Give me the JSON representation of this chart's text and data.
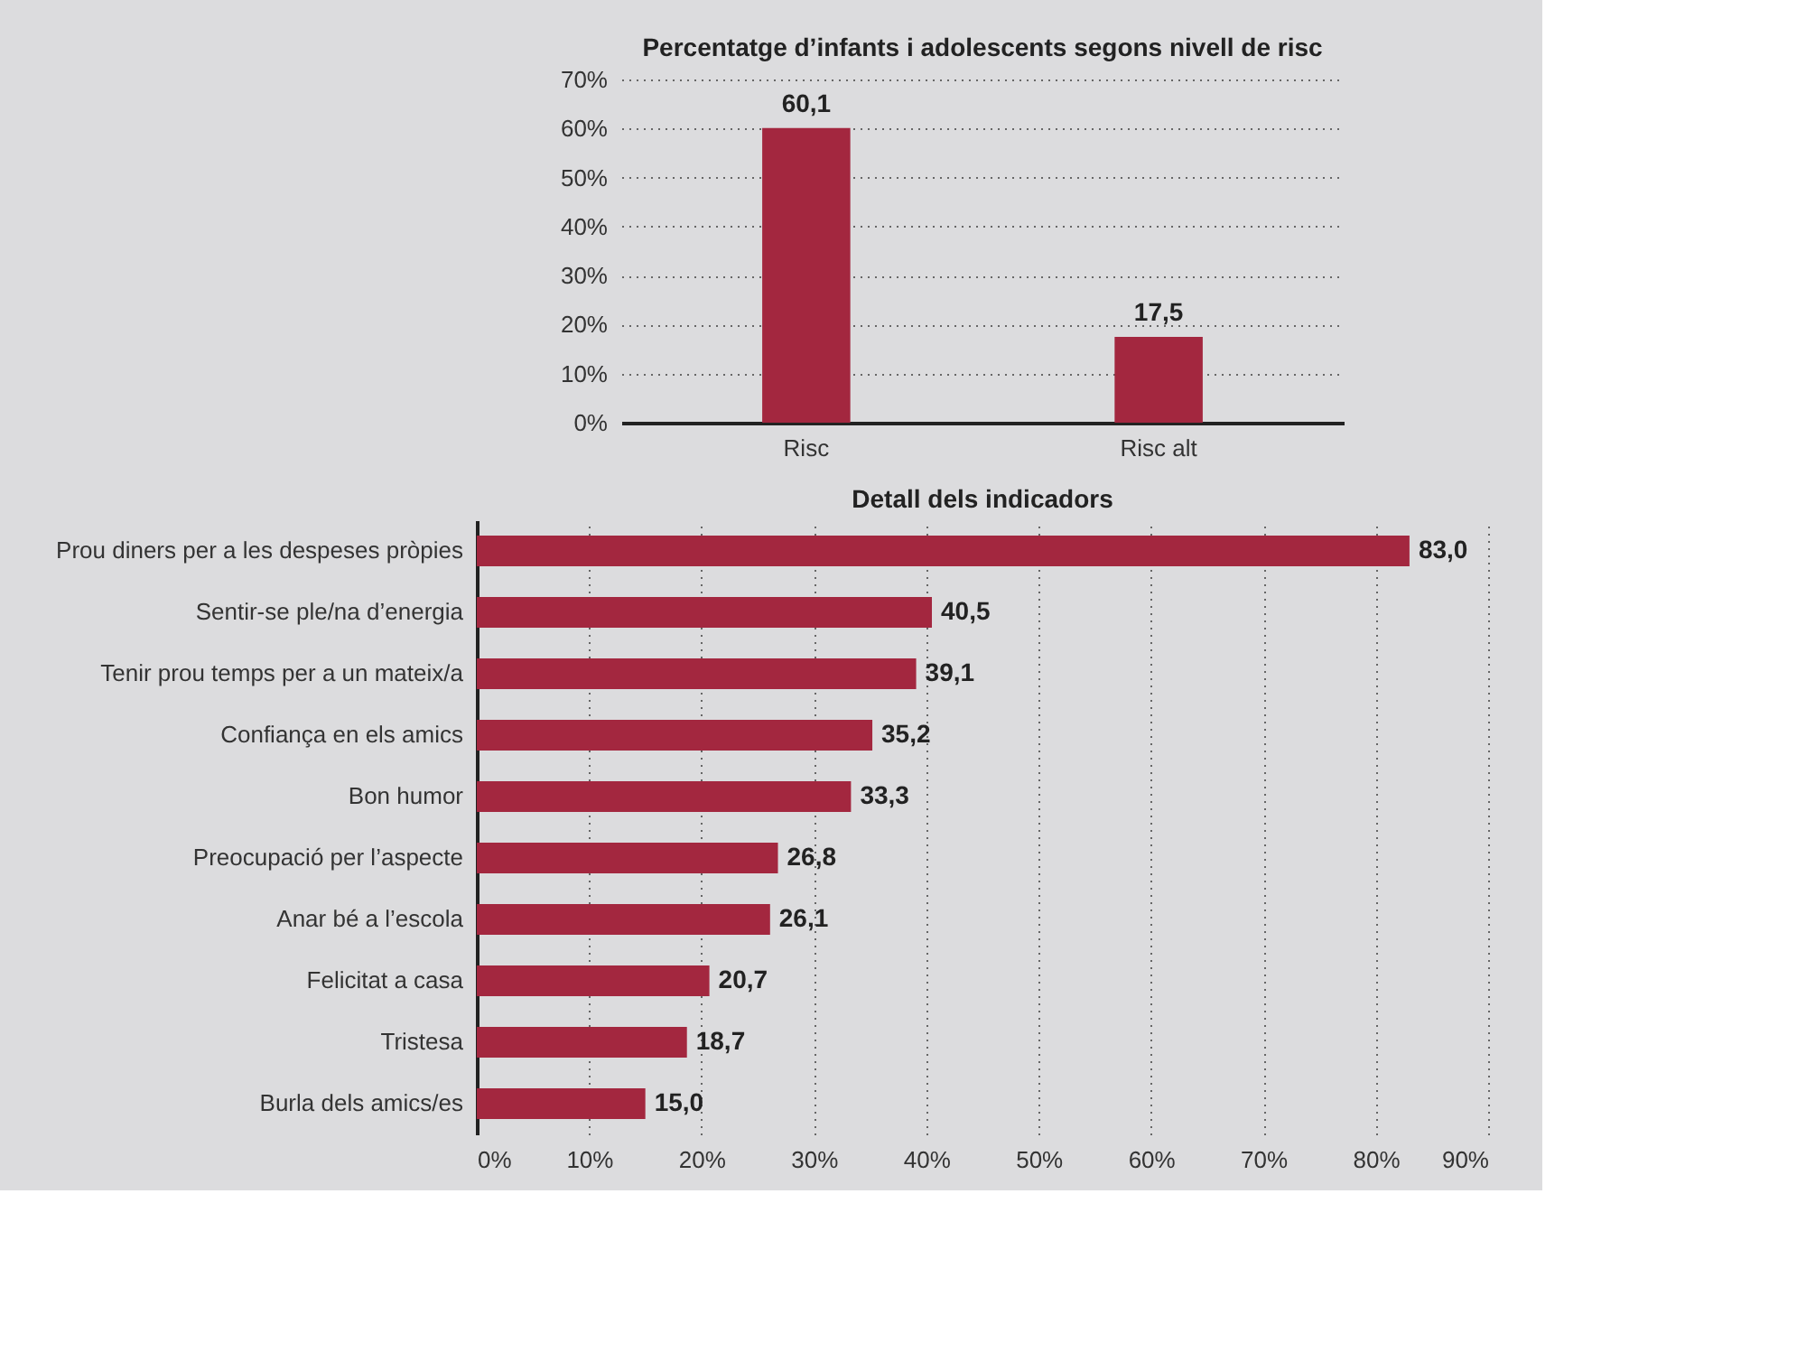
{
  "chart_data": [
    {
      "type": "bar",
      "title": "Percentatge d’infants i adolescents segons nivell de risc",
      "categories": [
        "Risc",
        "Risc alt"
      ],
      "values": [
        60.1,
        17.5
      ],
      "value_labels": [
        "60,1",
        "17,5"
      ],
      "color": "#a3273f",
      "ylim": [
        0,
        70
      ],
      "yticks": [
        {
          "value": 0,
          "label": "0%"
        },
        {
          "value": 10,
          "label": "10%"
        },
        {
          "value": 20,
          "label": "20%"
        },
        {
          "value": 30,
          "label": "30%"
        },
        {
          "value": 40,
          "label": "40%"
        },
        {
          "value": 50,
          "label": "50%"
        },
        {
          "value": 60,
          "label": "60%"
        },
        {
          "value": 70,
          "label": "70%"
        }
      ],
      "grid": "y"
    },
    {
      "type": "bar",
      "orientation": "horizontal",
      "title": "Detall dels indicadors",
      "categories": [
        "Prou diners per a les despeses pròpies",
        "Sentir-se ple/na d’energia",
        "Tenir prou temps per a un mateix/a",
        "Confiança en els amics",
        "Bon humor",
        "Preocupació per l’aspecte",
        "Anar bé a l’escola",
        "Felicitat a casa",
        "Tristesa",
        "Burla dels amics/es"
      ],
      "values": [
        83.0,
        40.5,
        39.1,
        35.2,
        33.3,
        26.8,
        26.1,
        20.7,
        18.7,
        15.0
      ],
      "value_labels": [
        "83,0",
        "40,5",
        "39,1",
        "35,2",
        "33,3",
        "26,8",
        "26,1",
        "20,7",
        "18,7",
        "15,0"
      ],
      "color": "#a3273f",
      "xlim": [
        0,
        90
      ],
      "xticks": [
        {
          "value": 0,
          "label": "0%"
        },
        {
          "value": 10,
          "label": "10%"
        },
        {
          "value": 20,
          "label": "20%"
        },
        {
          "value": 30,
          "label": "30%"
        },
        {
          "value": 40,
          "label": "40%"
        },
        {
          "value": 50,
          "label": "50%"
        },
        {
          "value": 60,
          "label": "60%"
        },
        {
          "value": 70,
          "label": "70%"
        },
        {
          "value": 80,
          "label": "80%"
        },
        {
          "value": 90,
          "label": "90%"
        }
      ],
      "grid": "x"
    }
  ]
}
